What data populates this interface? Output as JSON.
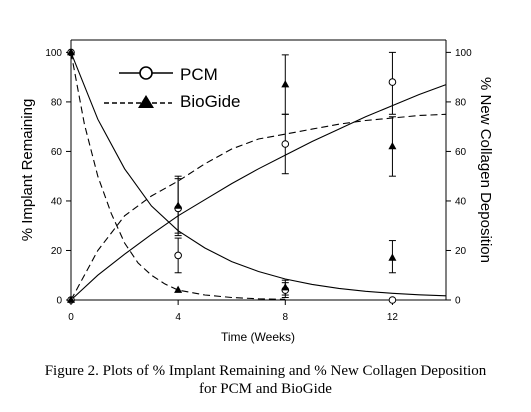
{
  "chart_data": {
    "type": "line",
    "x_label": "Time (Weeks)",
    "y_left_label": "% Implant Remaining",
    "y_right_label": "% New Collagen Deposition",
    "xlim": [
      0,
      14
    ],
    "ylim": [
      0,
      105
    ],
    "x_ticks": [
      0,
      4,
      8,
      12
    ],
    "y_ticks": [
      0,
      20,
      40,
      60,
      80,
      100
    ],
    "grid": false,
    "legend_position": "top-left",
    "legend": [
      {
        "label": "PCM",
        "line": "solid",
        "marker": "circle-open"
      },
      {
        "label": "BioGide",
        "line": "dashed",
        "marker": "triangle-filled"
      }
    ],
    "series": [
      {
        "name": "PCM",
        "measure": "implant remaining",
        "axis": "left",
        "marker": "circle-open",
        "points": [
          {
            "x": 0,
            "y": 100
          },
          {
            "x": 4,
            "y": 18,
            "lo": 11,
            "hi": 25
          },
          {
            "x": 8,
            "y": 4,
            "lo": 1,
            "hi": 7
          },
          {
            "x": 12,
            "y": 0
          }
        ]
      },
      {
        "name": "BioGide",
        "measure": "implant remaining",
        "axis": "left",
        "marker": "triangle-filled",
        "points": [
          {
            "x": 0,
            "y": 100
          },
          {
            "x": 4,
            "y": 4
          },
          {
            "x": 8,
            "y": 5,
            "lo": 2,
            "hi": 8
          }
        ]
      },
      {
        "name": "PCM",
        "measure": "new collagen deposition",
        "axis": "right",
        "marker": "circle-open",
        "points": [
          {
            "x": 0,
            "y": 0
          },
          {
            "x": 4,
            "y": 37,
            "lo": 26,
            "hi": 49
          },
          {
            "x": 8,
            "y": 63,
            "lo": 51,
            "hi": 75
          },
          {
            "x": 12,
            "y": 88,
            "lo": 75,
            "hi": 100
          }
        ]
      },
      {
        "name": "BioGide",
        "measure": "new collagen deposition",
        "axis": "right",
        "marker": "triangle-filled",
        "points": [
          {
            "x": 0,
            "y": 0
          },
          {
            "x": 4,
            "y": 38,
            "lo": 27,
            "hi": 50
          },
          {
            "x": 8,
            "y": 87,
            "lo": 75,
            "hi": 99
          },
          {
            "x": 12,
            "y": 62,
            "lo": 50,
            "hi": 74
          },
          {
            "x": 12,
            "y": 17,
            "lo": 11,
            "hi": 24
          }
        ]
      }
    ],
    "fit_curves": [
      {
        "name": "PCM",
        "measure": "implant remaining",
        "style": "solid",
        "points": [
          [
            0,
            100
          ],
          [
            1,
            73
          ],
          [
            2,
            53
          ],
          [
            3,
            38
          ],
          [
            4,
            28
          ],
          [
            5,
            21
          ],
          [
            6,
            15.5
          ],
          [
            7,
            11.5
          ],
          [
            8,
            8.5
          ],
          [
            9,
            6.3
          ],
          [
            10,
            4.7
          ],
          [
            11,
            3.5
          ],
          [
            12,
            2.7
          ],
          [
            13,
            2.1
          ],
          [
            14,
            1.7
          ]
        ]
      },
      {
        "name": "BioGide",
        "measure": "implant remaining",
        "style": "dashed",
        "points": [
          [
            0,
            100
          ],
          [
            0.5,
            71
          ],
          [
            1,
            50
          ],
          [
            1.5,
            35
          ],
          [
            2,
            23
          ],
          [
            2.5,
            15
          ],
          [
            3,
            10
          ],
          [
            3.5,
            6.5
          ],
          [
            4,
            4
          ],
          [
            5,
            2
          ],
          [
            6,
            1
          ],
          [
            7,
            0.5
          ],
          [
            8,
            0.3
          ]
        ]
      },
      {
        "name": "PCM",
        "measure": "new collagen deposition",
        "style": "solid",
        "points": [
          [
            0,
            0
          ],
          [
            1,
            10
          ],
          [
            2,
            18.5
          ],
          [
            3,
            26.5
          ],
          [
            4,
            34
          ],
          [
            5,
            40.5
          ],
          [
            6,
            47
          ],
          [
            7,
            53
          ],
          [
            8,
            58.5
          ],
          [
            9,
            64
          ],
          [
            10,
            69
          ],
          [
            11,
            74
          ],
          [
            12,
            78.5
          ],
          [
            13,
            83
          ],
          [
            14,
            87
          ]
        ]
      },
      {
        "name": "BioGide",
        "measure": "new collagen deposition",
        "style": "dashed",
        "points": [
          [
            0,
            0
          ],
          [
            1,
            20
          ],
          [
            2,
            34
          ],
          [
            3,
            42
          ],
          [
            4,
            48
          ],
          [
            5,
            55
          ],
          [
            6,
            61
          ],
          [
            7,
            65
          ],
          [
            8,
            67
          ],
          [
            9,
            69
          ],
          [
            10,
            71
          ],
          [
            11,
            72.5
          ],
          [
            12,
            73.5
          ],
          [
            13,
            74.5
          ],
          [
            14,
            75
          ]
        ]
      }
    ]
  },
  "caption": {
    "line1": "Figure 2. Plots of % Implant Remaining and % New Collagen  Deposition",
    "line2": "for PCM and BioGide"
  }
}
